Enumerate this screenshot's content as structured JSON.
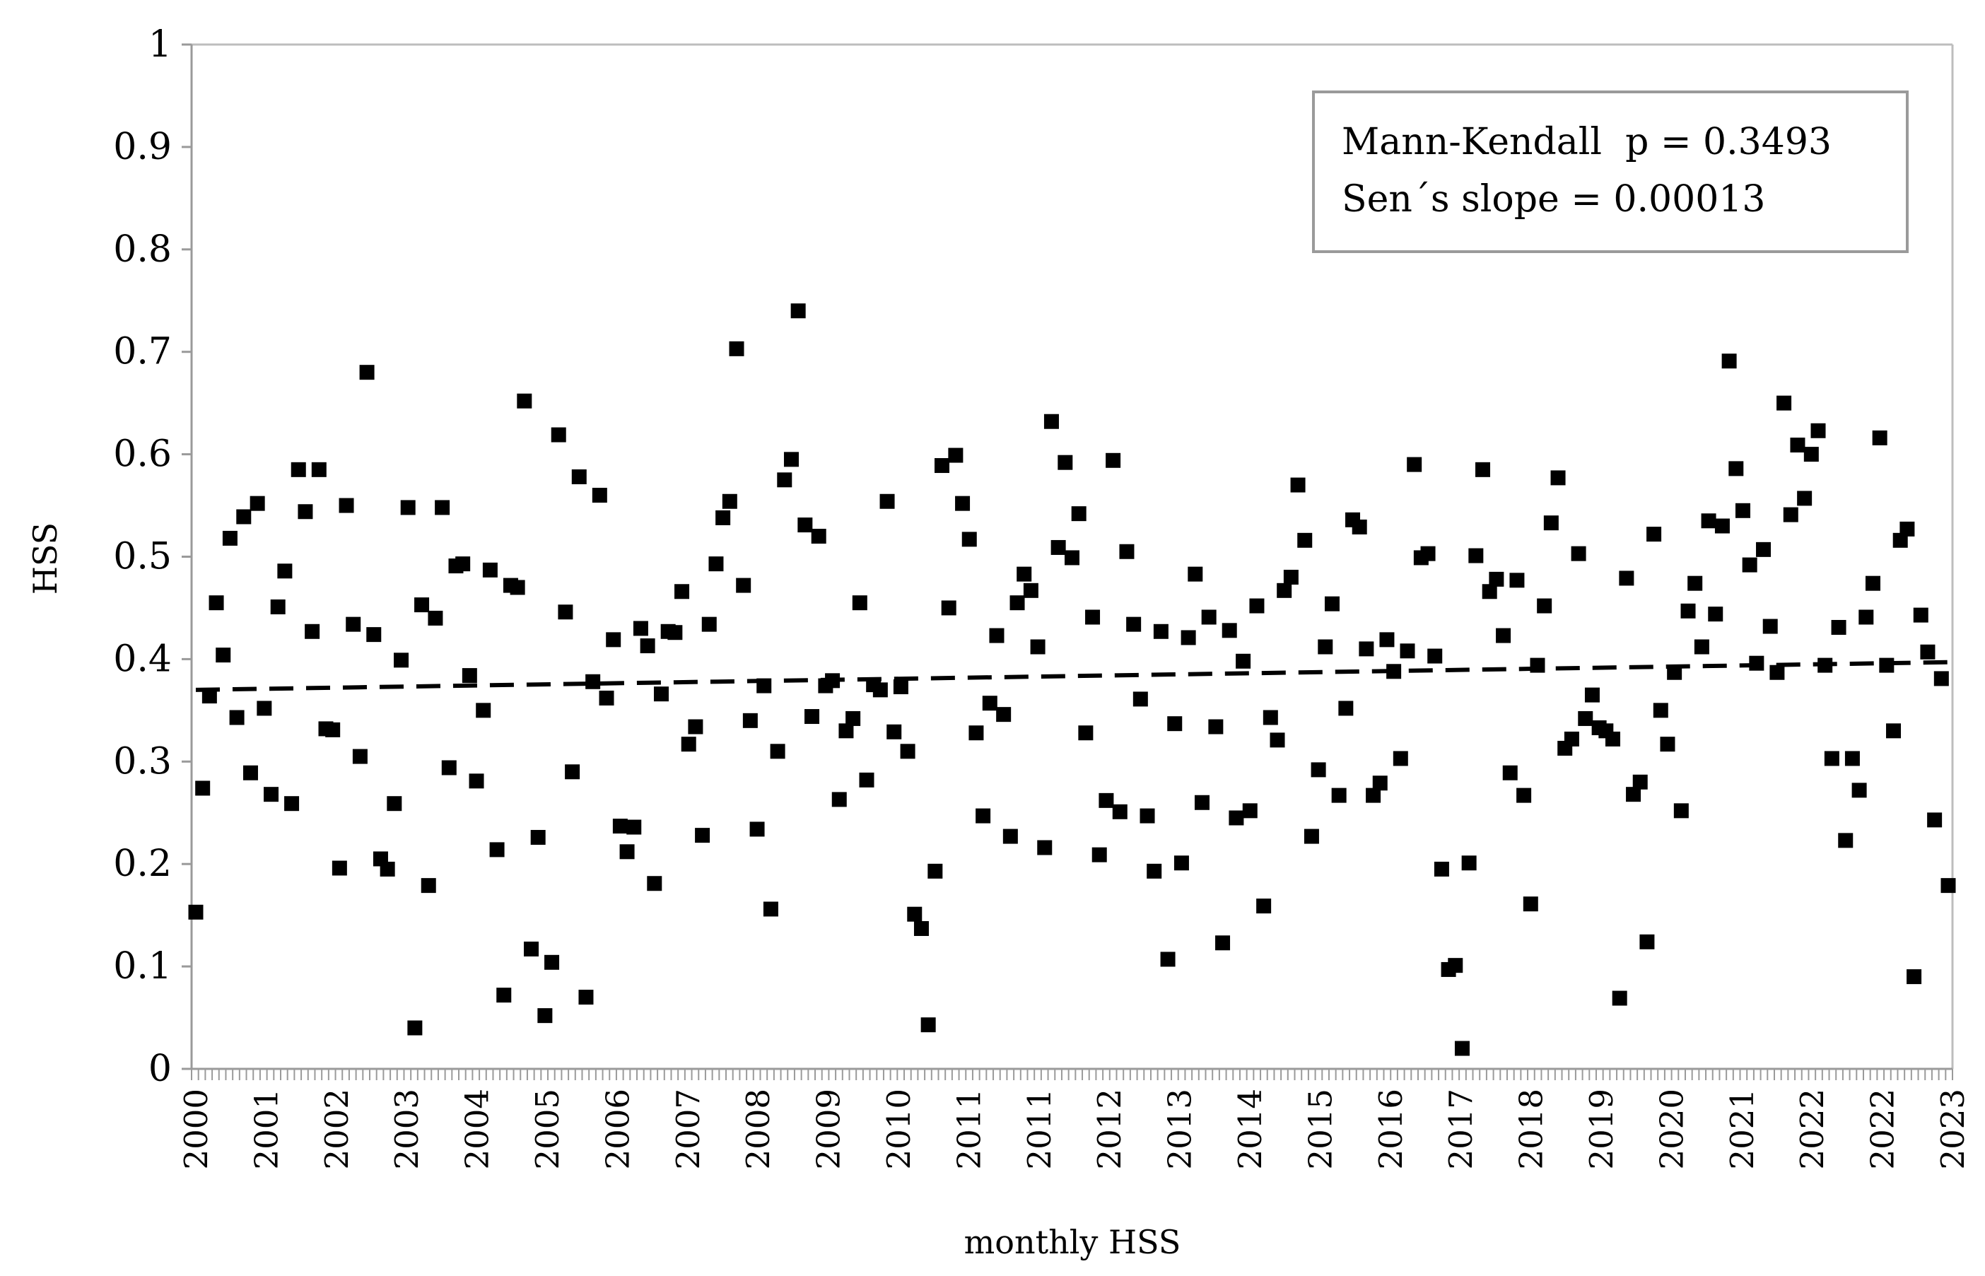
{
  "chart_data": {
    "type": "scatter",
    "xlabel": "monthly HSS",
    "ylabel": "HSS",
    "ylim": [
      0,
      1
    ],
    "yticks": [
      "0",
      "0.1",
      "0.2",
      "0.3",
      "0.4",
      "0.5",
      "0.6",
      "0.7",
      "0.8",
      "0.9",
      "1"
    ],
    "xticks": [
      "2000",
      "2001",
      "2002",
      "2003",
      "2004",
      "2005",
      "2006",
      "2007",
      "2008",
      "2009",
      "2010",
      "2011",
      "2011",
      "2012",
      "2013",
      "2014",
      "2015",
      "2016",
      "2017",
      "2018",
      "2019",
      "2020",
      "2021",
      "2022",
      "2022",
      "2023"
    ],
    "grid": false,
    "legend_position": "top-right",
    "annotation": {
      "line1": "Mann-Kendall  p = 0.3493",
      "line2": "Sen´s slope = 0.00013"
    },
    "trend": {
      "style": "dashed",
      "start": 0.37,
      "end": 0.397
    },
    "series": [
      {
        "values": [
          0.153,
          0.274,
          0.364,
          0.455,
          0.404,
          0.518,
          0.343,
          0.539,
          0.289,
          0.552,
          0.352,
          0.268,
          0.451,
          0.486,
          0.259,
          0.585,
          0.544,
          0.427,
          0.585,
          0.332,
          0.331,
          0.196,
          0.55,
          0.434,
          0.305,
          0.68,
          0.424,
          0.205,
          0.195,
          0.259,
          0.399,
          0.548,
          0.04,
          0.453,
          0.179,
          0.44,
          0.548,
          0.294,
          0.491,
          0.493,
          0.384,
          0.281,
          0.35,
          0.487,
          0.214,
          0.072,
          0.472,
          0.47,
          0.652,
          0.117,
          0.226,
          0.052,
          0.104,
          0.619,
          0.446,
          0.29,
          0.578,
          0.07,
          0.378,
          0.56,
          0.362,
          0.419,
          0.237,
          0.212,
          0.236,
          0.43,
          0.413,
          0.181,
          0.366,
          0.427,
          0.426,
          0.466,
          0.317,
          0.334,
          0.228,
          0.434,
          0.493,
          0.538,
          0.554,
          0.703,
          0.472,
          0.34,
          0.234,
          0.374,
          0.156,
          0.31,
          0.575,
          0.595,
          0.74,
          0.531,
          0.344,
          0.52,
          0.374,
          0.379,
          0.263,
          0.33,
          0.342,
          0.455,
          0.282,
          0.375,
          0.37,
          0.554,
          0.329,
          0.373,
          0.31,
          0.151,
          0.137,
          0.043,
          0.193,
          0.589,
          0.45,
          0.599,
          0.552,
          0.517,
          0.328,
          0.247,
          0.357,
          0.423,
          0.346,
          0.227,
          0.455,
          0.483,
          0.467,
          0.412,
          0.216,
          0.632,
          0.509,
          0.592,
          0.499,
          0.542,
          0.328,
          0.441,
          0.209,
          0.262,
          0.594,
          0.251,
          0.505,
          0.434,
          0.361,
          0.247,
          0.193,
          0.427,
          0.107,
          0.337,
          0.201,
          0.421,
          0.483,
          0.26,
          0.441,
          0.334,
          0.123,
          0.428,
          0.245,
          0.398,
          0.252,
          0.452,
          0.159,
          0.343,
          0.321,
          0.467,
          0.48,
          0.57,
          0.516,
          0.227,
          0.292,
          0.412,
          0.454,
          0.267,
          0.352,
          0.536,
          0.529,
          0.41,
          0.267,
          0.279,
          0.419,
          0.388,
          0.303,
          0.408,
          0.59,
          0.499,
          0.503,
          0.403,
          0.195,
          0.097,
          0.101,
          0.02,
          0.201,
          0.501,
          0.585,
          0.466,
          0.478,
          0.423,
          0.289,
          0.477,
          0.267,
          0.161,
          0.394,
          0.452,
          0.533,
          0.577,
          0.313,
          0.322,
          0.503,
          0.342,
          0.365,
          0.333,
          0.33,
          0.322,
          0.069,
          0.479,
          0.268,
          0.28,
          0.124,
          0.522,
          0.35,
          0.317,
          0.387,
          0.252,
          0.447,
          0.474,
          0.412,
          0.535,
          0.444,
          0.53,
          0.691,
          0.586,
          0.545,
          0.492,
          0.396,
          0.507,
          0.432,
          0.387,
          0.65,
          0.541,
          0.609,
          0.557,
          0.6,
          0.623,
          0.394,
          0.303,
          0.431,
          0.223,
          0.303,
          0.272,
          0.441,
          0.474,
          0.616,
          0.394,
          0.33,
          0.516,
          0.527,
          0.09,
          0.443,
          0.407,
          0.243,
          0.381,
          0.179
        ]
      }
    ]
  }
}
